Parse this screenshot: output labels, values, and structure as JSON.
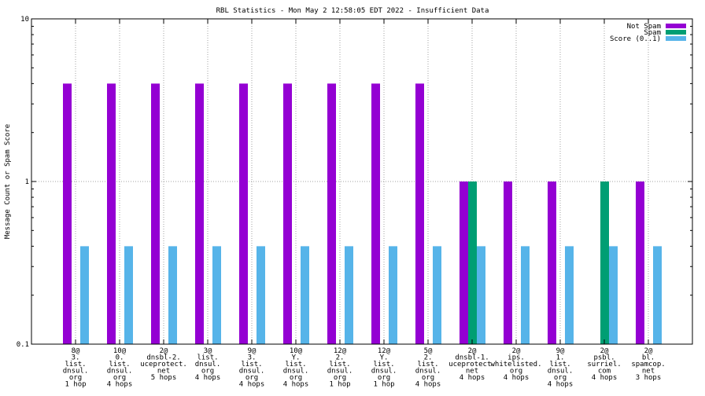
{
  "chart_data": {
    "type": "bar",
    "title": "RBL Statistics - Mon May  2 12:58:05 EDT 2022 - Insufficient Data",
    "ylabel": "Message Count or Spam Score",
    "xlabel": "",
    "y_scale": "log",
    "ylim": [
      0.1,
      10
    ],
    "y_ticks": [
      {
        "value": 0.1,
        "label": "0.1"
      },
      {
        "value": 1,
        "label": "1"
      },
      {
        "value": 10,
        "label": "10"
      }
    ],
    "grid": true,
    "legend_position": "top-right",
    "categories": [
      [
        "8@",
        "3.",
        "list.",
        "dnsul.",
        "org",
        "1 hop"
      ],
      [
        "10@",
        "0.",
        "list.",
        "dnsul.",
        "org",
        "4 hops"
      ],
      [
        "2@",
        "dnsbl-2.",
        "uceprotect.",
        "net",
        "5 hops"
      ],
      [
        "3@",
        "list.",
        "dnsul.",
        "org",
        "4 hops"
      ],
      [
        "9@",
        "3.",
        "list.",
        "dnsul.",
        "org",
        "4 hops"
      ],
      [
        "10@",
        "Y.",
        "list.",
        "dnsul.",
        "org",
        "4 hops"
      ],
      [
        "12@",
        "2.",
        "list.",
        "dnsul.",
        "org",
        "1 hop"
      ],
      [
        "12@",
        "Y.",
        "list.",
        "dnsul.",
        "org",
        "1 hop"
      ],
      [
        "5@",
        "2.",
        "list.",
        "dnsul.",
        "org",
        "4 hops"
      ],
      [
        "2@",
        "dnsbl-1.",
        "uceprotect.",
        "net",
        "4 hops"
      ],
      [
        "2@",
        "ips.",
        "whitelisted.",
        "org",
        "4 hops"
      ],
      [
        "9@",
        "1.",
        "list.",
        "dnsul.",
        "org",
        "4 hops"
      ],
      [
        "2@",
        "psbl.",
        "surriel.",
        "com",
        "4 hops"
      ],
      [
        "2@",
        "bl.",
        "spamcop.",
        "net",
        "3 hops"
      ]
    ],
    "series": [
      {
        "name": "Not Spam",
        "color": "#9400d3",
        "values": [
          4,
          4,
          4,
          4,
          4,
          4,
          4,
          4,
          4,
          1,
          1,
          1,
          null,
          1
        ]
      },
      {
        "name": "Spam",
        "color": "#009e73",
        "values": [
          null,
          null,
          null,
          null,
          null,
          null,
          null,
          null,
          null,
          1,
          null,
          null,
          1,
          null
        ]
      },
      {
        "name": "Score (0..1)",
        "color": "#56b4e9",
        "values": [
          0.4,
          0.4,
          0.4,
          0.4,
          0.4,
          0.4,
          0.4,
          0.4,
          0.4,
          0.4,
          0.4,
          0.4,
          0.4,
          0.4
        ]
      }
    ]
  }
}
